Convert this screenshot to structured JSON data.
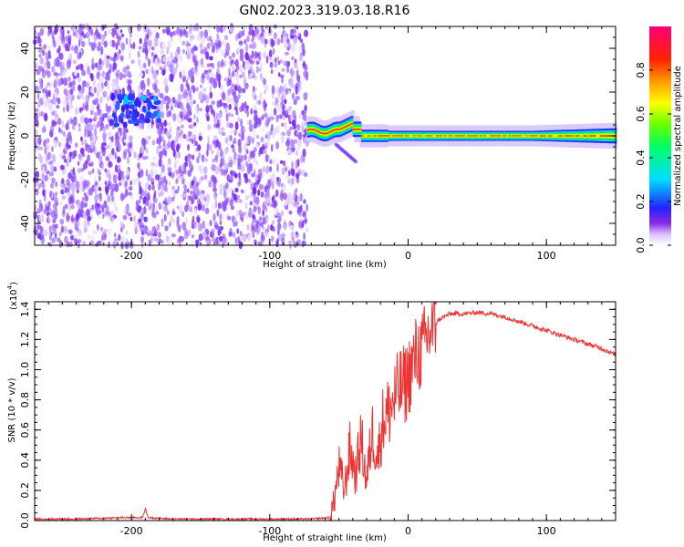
{
  "title": "GN02.2023.319.03.18.R16",
  "colorbar": {
    "label": "Normalized spectral amplitude",
    "ticks": [
      "0.0",
      "0.2",
      "0.4",
      "0.6",
      "0.8"
    ],
    "tick_values": [
      0.0,
      0.2,
      0.4,
      0.6,
      0.8
    ],
    "range": [
      0,
      1
    ]
  },
  "chart_data": [
    {
      "type": "heatmap",
      "title": "",
      "xlabel": "Height of straight line (km)",
      "ylabel": "Frequency (Hz)",
      "xlim": [
        -270,
        150
      ],
      "ylim": [
        -50,
        50
      ],
      "xticks": [
        -200,
        -100,
        0,
        100
      ],
      "xtick_labels": [
        "-200",
        "-100",
        "0",
        "100"
      ],
      "yticks": [
        -40,
        -20,
        0,
        20,
        40
      ],
      "ytick_labels": [
        "-40",
        "-20",
        "0",
        "20",
        "40"
      ],
      "colormap": "hsv (0=white/violet, 1=magenta-red)",
      "regions": [
        {
          "name": "noise",
          "x_range": [
            -270,
            -73
          ],
          "y_range": [
            -50,
            50
          ],
          "amplitude": 0.05
        },
        {
          "name": "cluster",
          "x_range": [
            -215,
            -180
          ],
          "y_range": [
            5,
            18
          ],
          "amplitude": 0.25
        },
        {
          "name": "carrier",
          "x_range": [
            -73,
            150
          ],
          "y_center": 0,
          "amplitude": 0.9
        }
      ]
    },
    {
      "type": "line",
      "title": "",
      "xlabel": "Height of straight line (km)",
      "ylabel": "SNR (10 * v/v)",
      "y_multiplier": "(x10",
      "y_multiplier_exp": "4",
      "y_multiplier_close": ")",
      "xlim": [
        -270,
        150
      ],
      "ylim": [
        0,
        1.45
      ],
      "xticks": [
        -200,
        -100,
        0,
        100
      ],
      "xtick_labels": [
        "-200",
        "-100",
        "0",
        "100"
      ],
      "yticks": [
        0.0,
        0.2,
        0.4,
        0.6,
        0.8,
        1.0,
        1.2,
        1.4
      ],
      "ytick_labels": [
        "0.0",
        "0.2",
        "0.4",
        "0.6",
        "0.8",
        "1.0",
        "1.2",
        "1.4"
      ],
      "series": [
        {
          "color": "#ee3333",
          "x": [
            -270,
            -240,
            -205,
            -192,
            -190,
            -188,
            -170,
            -140,
            -100,
            -70,
            -57,
            -54,
            -50,
            -46,
            -42,
            -38,
            -34,
            -30,
            -26,
            -22,
            -18,
            -14,
            -10,
            -6,
            -2,
            2,
            6,
            10,
            14,
            18,
            22,
            26,
            30,
            40,
            50,
            60,
            70,
            80,
            90,
            100,
            110,
            120,
            130,
            140,
            150
          ],
          "y": [
            0.01,
            0.01,
            0.02,
            0.02,
            0.08,
            0.02,
            0.01,
            0.01,
            0.01,
            0.01,
            0.02,
            0.1,
            0.35,
            0.2,
            0.48,
            0.3,
            0.55,
            0.25,
            0.6,
            0.42,
            0.68,
            0.72,
            0.8,
            0.88,
            0.9,
            1.0,
            1.1,
            1.12,
            1.22,
            1.28,
            1.33,
            1.35,
            1.37,
            1.37,
            1.38,
            1.37,
            1.35,
            1.32,
            1.29,
            1.26,
            1.23,
            1.2,
            1.17,
            1.14,
            1.1
          ]
        }
      ]
    }
  ]
}
